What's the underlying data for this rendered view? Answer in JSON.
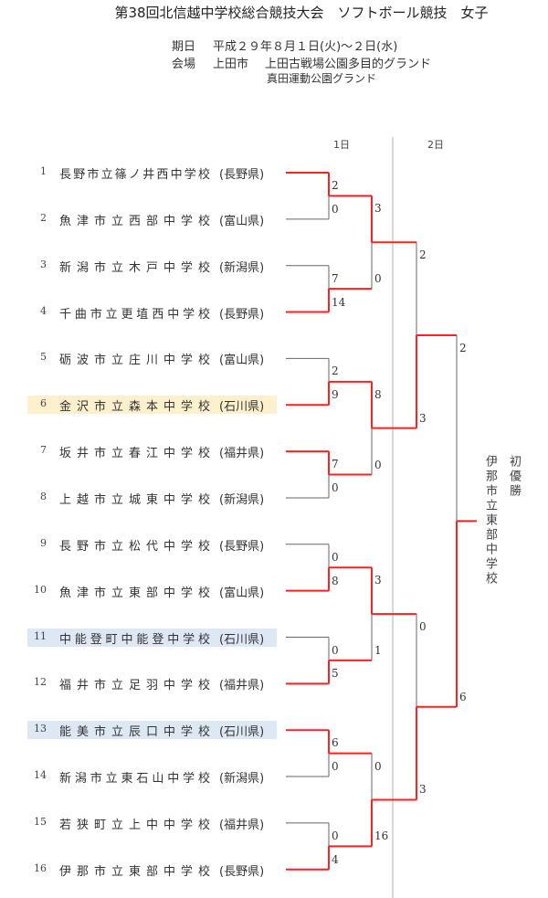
{
  "header": {
    "title": "第38回北信越中学校総合競技大会　ソフトボール競技　女子",
    "date_label": "期日",
    "date_value": "平成２９年８月１日(火)～２日(水)",
    "venue_label": "会場",
    "venue_city": "上田市",
    "venue_1": "上田古戦場公園多目的グランド",
    "venue_2": "真田運動公園グランド"
  },
  "days": [
    "1日",
    "2日"
  ],
  "teams": [
    {
      "no": "1",
      "name": "長野市立篠ノ井西中学校",
      "pref": "(長野県)",
      "highlight": ""
    },
    {
      "no": "2",
      "name": "魚津市立西部中学校",
      "pref": "(富山県)",
      "highlight": ""
    },
    {
      "no": "3",
      "name": "新潟市立木戸中学校",
      "pref": "(新潟県)",
      "highlight": ""
    },
    {
      "no": "4",
      "name": "千曲市立更埴西中学校",
      "pref": "(長野県)",
      "highlight": ""
    },
    {
      "no": "5",
      "name": "砺波市立庄川中学校",
      "pref": "(富山県)",
      "highlight": ""
    },
    {
      "no": "6",
      "name": "金沢市立森本中学校",
      "pref": "(石川県)",
      "highlight": "yellow"
    },
    {
      "no": "7",
      "name": "坂井市立春江中学校",
      "pref": "(福井県)",
      "highlight": ""
    },
    {
      "no": "8",
      "name": "上越市立城東中学校",
      "pref": "(新潟県)",
      "highlight": ""
    },
    {
      "no": "9",
      "name": "長野市立松代中学校",
      "pref": "(長野県)",
      "highlight": ""
    },
    {
      "no": "10",
      "name": "魚津市立東部中学校",
      "pref": "(富山県)",
      "highlight": ""
    },
    {
      "no": "11",
      "name": "中能登町中能登中学校",
      "pref": "(石川県)",
      "highlight": "blue"
    },
    {
      "no": "12",
      "name": "福井市立足羽中学校",
      "pref": "(福井県)",
      "highlight": ""
    },
    {
      "no": "13",
      "name": "能美市立辰口中学校",
      "pref": "(石川県)",
      "highlight": "blue"
    },
    {
      "no": "14",
      "name": "新潟市立東石山中学校",
      "pref": "(新潟県)",
      "highlight": ""
    },
    {
      "no": "15",
      "name": "若狭町立上中中学校",
      "pref": "(福井県)",
      "highlight": ""
    },
    {
      "no": "16",
      "name": "伊那市立東部中学校",
      "pref": "(長野県)",
      "highlight": ""
    }
  ],
  "rounds": [
    [
      {
        "top": "2",
        "bottom": "0",
        "winner": "top"
      },
      {
        "top": "7",
        "bottom": "14",
        "winner": "bottom"
      },
      {
        "top": "2",
        "bottom": "9",
        "winner": "bottom"
      },
      {
        "top": "7",
        "bottom": "0",
        "winner": "top"
      },
      {
        "top": "0",
        "bottom": "8",
        "winner": "bottom"
      },
      {
        "top": "0",
        "bottom": "5",
        "winner": "bottom"
      },
      {
        "top": "6",
        "bottom": "0",
        "winner": "top"
      },
      {
        "top": "0",
        "bottom": "4",
        "winner": "bottom"
      }
    ],
    [
      {
        "top": "3",
        "bottom": "0",
        "winner": "top"
      },
      {
        "top": "8",
        "bottom": "0",
        "winner": "top"
      },
      {
        "top": "3",
        "bottom": "1",
        "winner": "top"
      },
      {
        "top": "0",
        "bottom": "16",
        "winner": "bottom"
      }
    ],
    [
      {
        "top": "2",
        "bottom": "3",
        "winner": "bottom"
      },
      {
        "top": "0",
        "bottom": "3",
        "winner": "bottom"
      }
    ],
    [
      {
        "top": "2",
        "bottom": "6",
        "winner": "bottom"
      }
    ]
  ],
  "champion": {
    "school": "伊那市立東部中学校",
    "note": "初優勝"
  },
  "colors": {
    "win": "#ff2020",
    "line": "#666666",
    "divider": "#cccccc",
    "yellow": "#fdf0cc",
    "blue": "#dde8f4"
  }
}
